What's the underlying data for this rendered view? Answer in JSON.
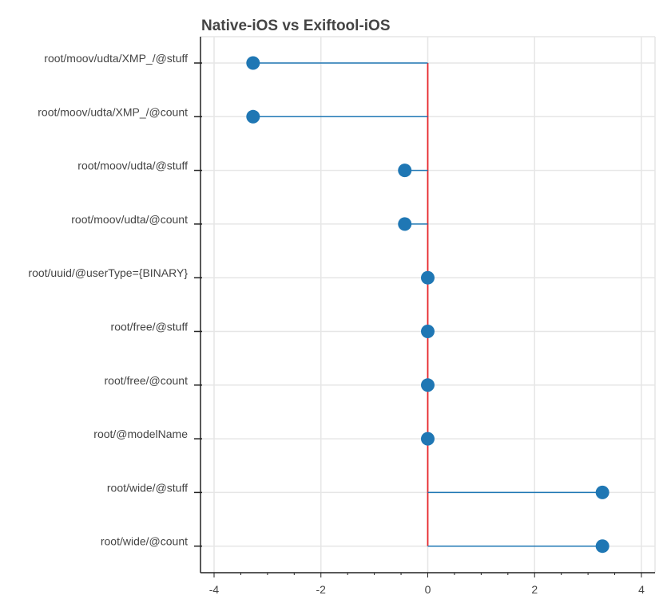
{
  "chart_data": {
    "type": "lollipop",
    "title": "Native-iOS vs Exiftool-iOS",
    "xlabel": "",
    "ylabel": "",
    "categories": [
      "root/moov/udta/XMP_/@stuff",
      "root/moov/udta/XMP_/@count",
      "root/moov/udta/@stuff",
      "root/moov/udta/@count",
      "root/uuid/@userType={BINARY}",
      "root/free/@stuff",
      "root/free/@count",
      "root/@modelName",
      "root/wide/@stuff",
      "root/wide/@count"
    ],
    "values": [
      -3.27,
      -3.27,
      -0.43,
      -0.43,
      0,
      0,
      0,
      0,
      3.27,
      3.27
    ],
    "xlim": [
      -4.25,
      4.25
    ],
    "xticks": [
      -4,
      -2,
      0,
      2,
      4
    ],
    "grid": true,
    "reference_line": 0,
    "colors": {
      "marker": "#1f77b4",
      "stem": "#1f77b4",
      "reference_line": "#e8262b",
      "grid": "#e6e6e6",
      "axis": "#222222",
      "text": "#444444"
    }
  }
}
